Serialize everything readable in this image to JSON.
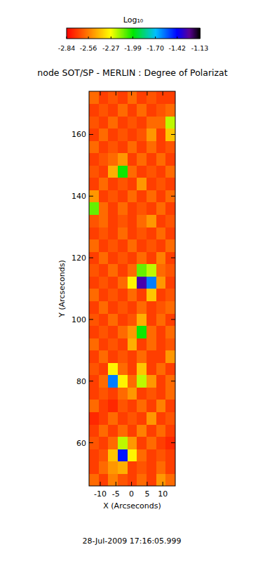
{
  "chart_data": {
    "type": "heatmap",
    "title": "node SOT/SP - MERLIN : Degree of Polarizat",
    "x_label": "X (Arcseconds)",
    "y_label": "Y (Arcseconds)",
    "annotations": [
      "28-Jul-2009 17:16:05.999"
    ],
    "xlim": [
      -13.6,
      14
    ],
    "ylim": [
      46,
      174
    ],
    "xticks": [
      -10,
      -5,
      0,
      5,
      10
    ],
    "yticks": [
      60,
      80,
      100,
      120,
      140,
      160
    ],
    "colorbar": {
      "label": "Log₁₀",
      "range": [
        -2.84,
        -1.13
      ],
      "ticks": [
        -2.84,
        -2.56,
        -2.27,
        -1.99,
        -1.7,
        -1.42,
        -1.13
      ]
    },
    "x_bins": [
      -13.6,
      -10.53,
      -7.47,
      -4.4,
      -1.33,
      1.73,
      4.8,
      7.87,
      10.93,
      14
    ],
    "y_bins": [
      46,
      50,
      54,
      58,
      62,
      66,
      70,
      74,
      78,
      82,
      86,
      90,
      94,
      98,
      102,
      106,
      110,
      114,
      118,
      122,
      126,
      130,
      134,
      138,
      142,
      146,
      150,
      154,
      158,
      162,
      166,
      170,
      174
    ],
    "z": [
      [
        -2.6,
        -2.7,
        -2.55,
        -2.65,
        -2.7,
        -2.6,
        -2.7,
        -2.5,
        -2.6
      ],
      [
        -2.7,
        -2.6,
        -2.5,
        -2.45,
        -2.7,
        -2.65,
        -2.7,
        -2.6,
        -2.7
      ],
      [
        -2.7,
        -2.65,
        -2.4,
        -1.45,
        -2.3,
        -2.6,
        -2.7,
        -2.65,
        -2.7
      ],
      [
        -2.65,
        -2.7,
        -2.6,
        -2.2,
        -2.5,
        -2.7,
        -2.6,
        -2.7,
        -2.75
      ],
      [
        -2.7,
        -2.6,
        -2.7,
        -2.6,
        -2.7,
        -2.55,
        -2.7,
        -2.6,
        -2.7
      ],
      [
        -2.75,
        -2.7,
        -2.6,
        -2.7,
        -2.65,
        -2.7,
        -2.5,
        -2.7,
        -2.65
      ],
      [
        -2.6,
        -2.7,
        -2.75,
        -2.65,
        -2.7,
        -2.6,
        -2.7,
        -2.55,
        -2.7
      ],
      [
        -2.7,
        -2.65,
        -2.7,
        -2.6,
        -2.5,
        -2.7,
        -2.65,
        -2.7,
        -2.6
      ],
      [
        -2.7,
        -2.6,
        -1.6,
        -2.3,
        -2.6,
        -2.2,
        -2.5,
        -2.7,
        -2.6
      ],
      [
        -2.65,
        -2.7,
        -2.3,
        -2.6,
        -2.7,
        -2.4,
        -2.7,
        -2.6,
        -2.7
      ],
      [
        -2.7,
        -2.6,
        -2.7,
        -2.65,
        -2.7,
        -2.6,
        -2.7,
        -2.7,
        -2.5
      ],
      [
        -2.6,
        -2.7,
        -2.65,
        -2.7,
        -2.45,
        -2.7,
        -2.6,
        -2.7,
        -2.65
      ],
      [
        -2.7,
        -2.65,
        -2.7,
        -2.6,
        -2.5,
        -2.0,
        -2.6,
        -2.7,
        -2.6
      ],
      [
        -2.65,
        -2.7,
        -2.6,
        -2.7,
        -2.65,
        -2.45,
        -2.7,
        -2.6,
        -2.7
      ],
      [
        -2.7,
        -2.6,
        -2.7,
        -2.65,
        -2.7,
        -2.6,
        -2.7,
        -2.65,
        -2.6
      ],
      [
        -2.6,
        -2.7,
        -2.65,
        -2.7,
        -2.6,
        -2.7,
        -2.4,
        -2.7,
        -2.65
      ],
      [
        -2.7,
        -2.65,
        -2.7,
        -2.6,
        -2.3,
        -1.3,
        -1.6,
        -2.5,
        -2.7
      ],
      [
        -2.65,
        -2.7,
        -2.6,
        -2.7,
        -2.6,
        -2.1,
        -2.2,
        -2.6,
        -2.65
      ],
      [
        -2.7,
        -2.6,
        -2.7,
        -2.65,
        -2.7,
        -2.6,
        -2.7,
        -2.55,
        -2.7
      ],
      [
        -2.6,
        -2.7,
        -2.65,
        -2.7,
        -2.6,
        -2.7,
        -2.65,
        -2.7,
        -2.6
      ],
      [
        -2.7,
        -2.65,
        -2.7,
        -2.6,
        -2.7,
        -2.65,
        -2.7,
        -2.6,
        -2.7
      ],
      [
        -2.65,
        -2.6,
        -2.7,
        -2.65,
        -2.7,
        -2.6,
        -2.5,
        -2.7,
        -2.65
      ],
      [
        -2.1,
        -2.6,
        -2.7,
        -2.6,
        -2.7,
        -2.65,
        -2.7,
        -2.6,
        -2.7
      ],
      [
        -2.5,
        -2.7,
        -2.65,
        -2.7,
        -2.6,
        -2.7,
        -2.6,
        -2.7,
        -2.6
      ],
      [
        -2.7,
        -2.6,
        -2.7,
        -2.65,
        -2.7,
        -2.5,
        -2.7,
        -2.65,
        -2.7
      ],
      [
        -2.65,
        -2.7,
        -2.45,
        -2.0,
        -2.6,
        -2.7,
        -2.65,
        -2.7,
        -2.6
      ],
      [
        -2.7,
        -2.65,
        -2.6,
        -2.5,
        -2.7,
        -2.6,
        -2.7,
        -2.6,
        -2.7
      ],
      [
        -2.6,
        -2.7,
        -2.65,
        -2.7,
        -2.6,
        -2.7,
        -2.6,
        -2.7,
        -2.65
      ],
      [
        -2.7,
        -2.6,
        -2.7,
        -2.65,
        -2.7,
        -2.65,
        -2.5,
        -2.7,
        -2.4
      ],
      [
        -2.65,
        -2.7,
        -2.6,
        -2.7,
        -2.65,
        -2.7,
        -2.6,
        -2.6,
        -2.2
      ],
      [
        -2.7,
        -2.65,
        -2.7,
        -2.6,
        -2.7,
        -2.6,
        -2.7,
        -2.65,
        -2.6
      ],
      [
        -2.6,
        -2.7,
        -2.65,
        -2.7,
        -2.6,
        -2.7,
        -2.65,
        -2.7,
        -2.7
      ]
    ]
  }
}
